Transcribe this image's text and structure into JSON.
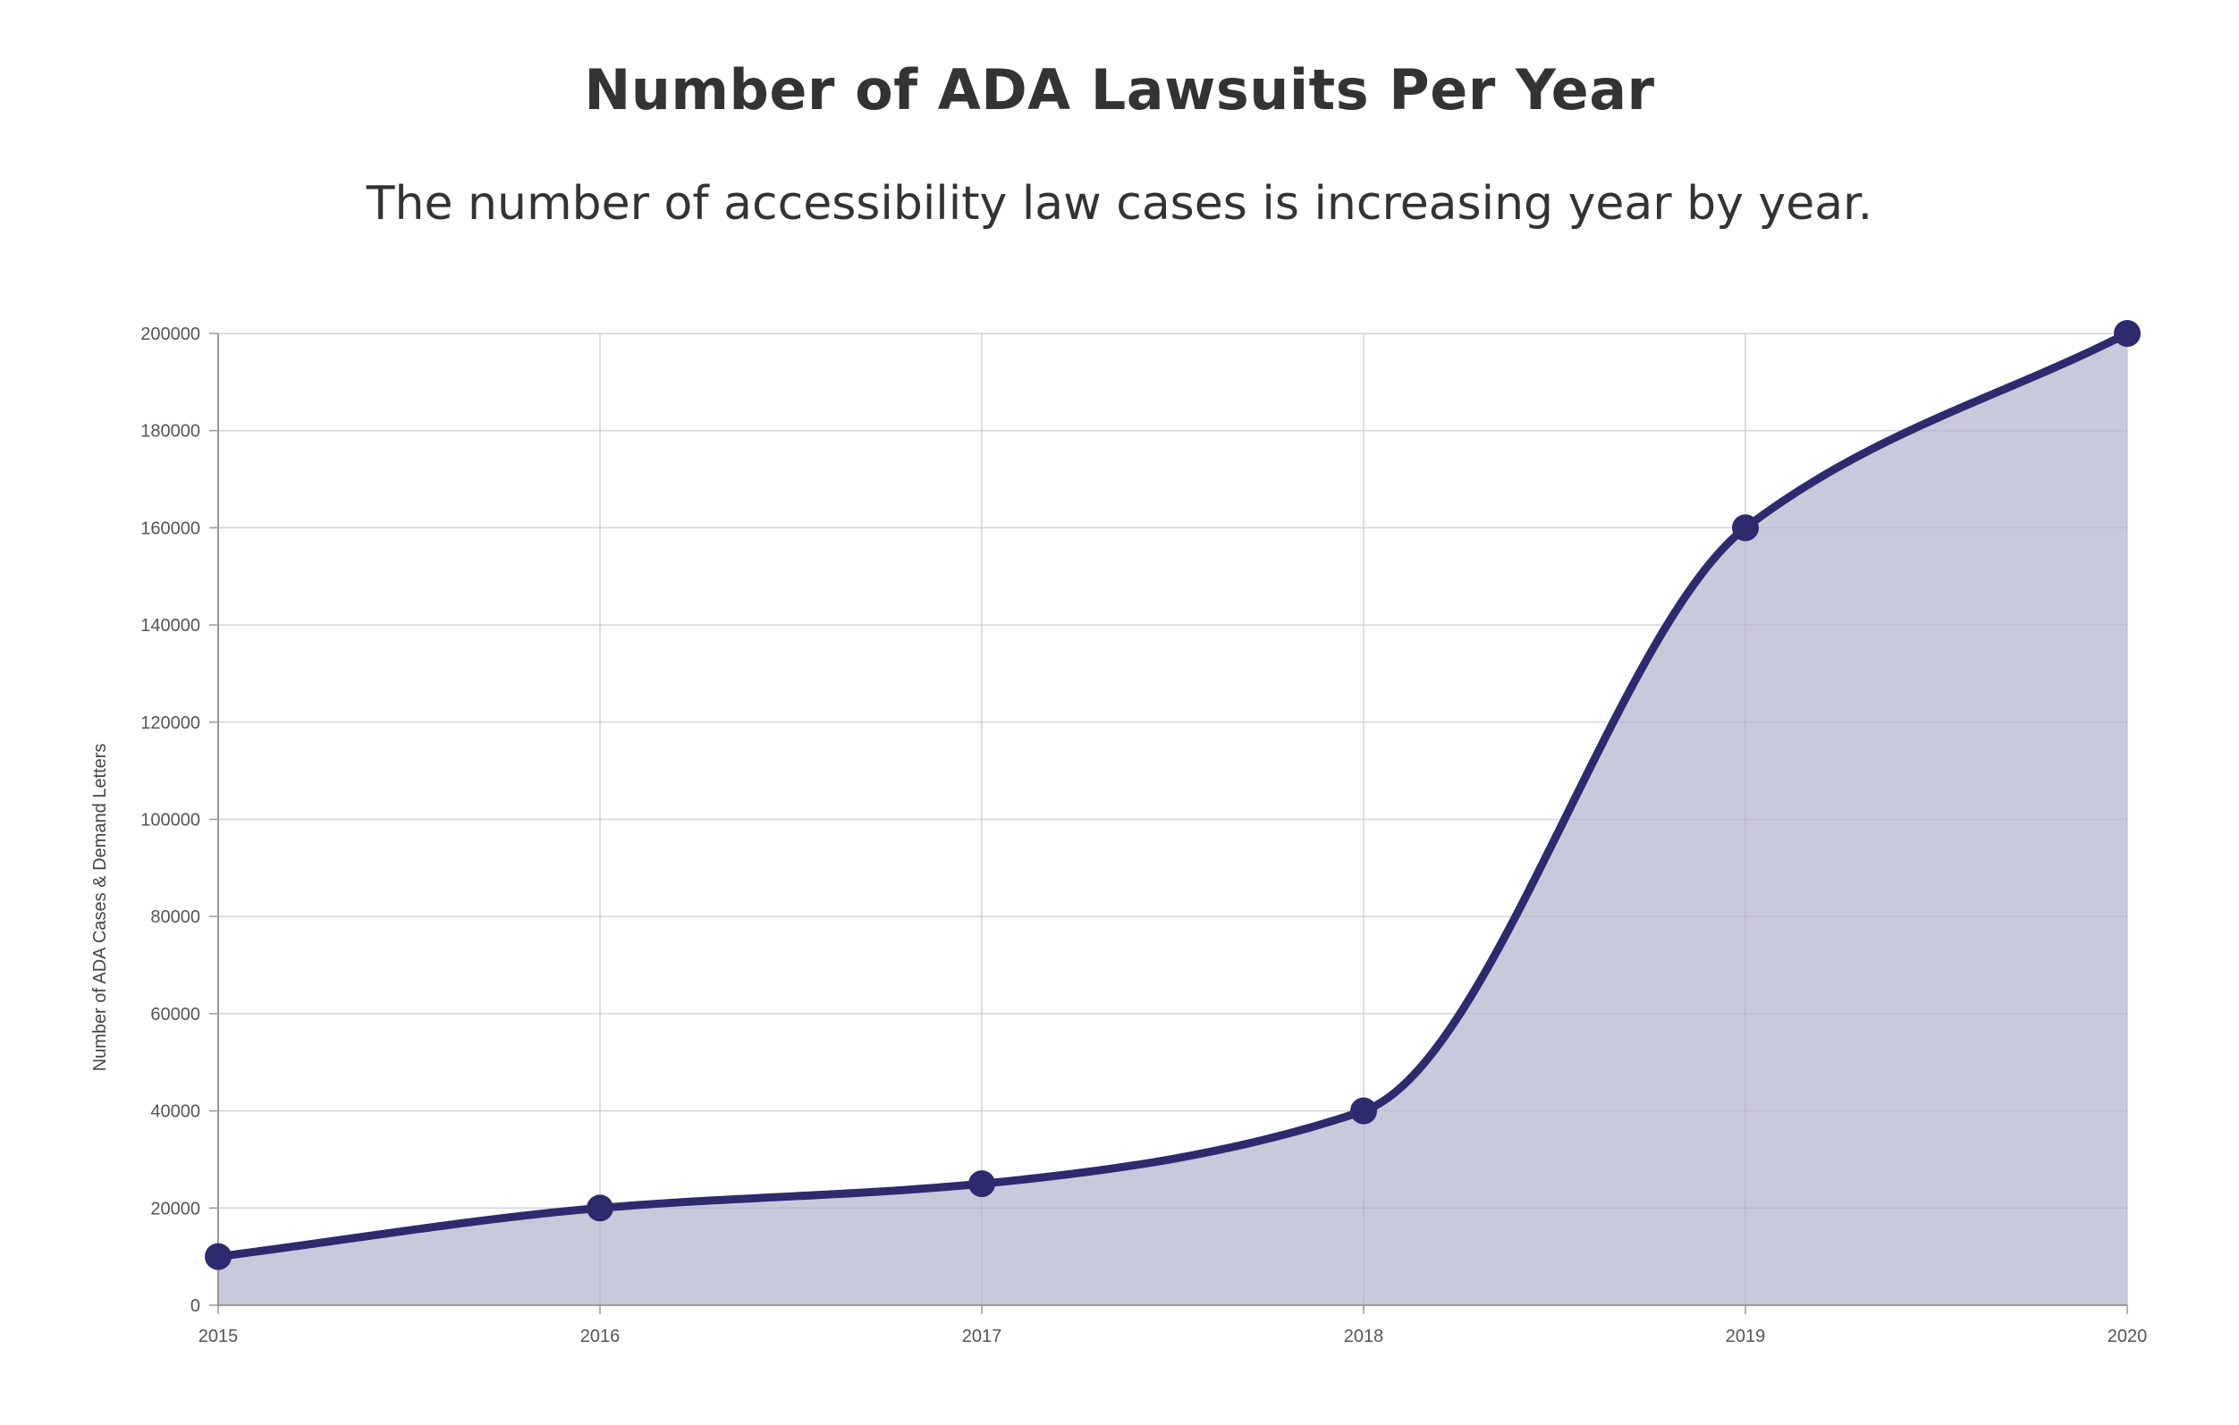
{
  "chart_data": {
    "type": "area",
    "title": "Number of ADA Lawsuits Per Year",
    "subtitle": "The number of accessibility law cases is increasing year by year.",
    "xlabel": "",
    "ylabel": "Number of ADA Cases & Demand Letters",
    "categories": [
      "2015",
      "2016",
      "2017",
      "2018",
      "2019",
      "2020"
    ],
    "series": [
      {
        "values": [
          10000,
          20000,
          25000,
          40000,
          160000,
          200000
        ]
      }
    ],
    "ylim": [
      0,
      200000
    ],
    "yticks": [
      "0",
      "20000",
      "40000",
      "60000",
      "80000",
      "100000",
      "120000",
      "140000",
      "160000",
      "180000",
      "200000"
    ],
    "grid": true,
    "legend": "none",
    "colors": {
      "line": "#2d2a6e",
      "fill": "#c9c9dc",
      "grid": "#e2e2e2",
      "axis": "#999999"
    }
  }
}
